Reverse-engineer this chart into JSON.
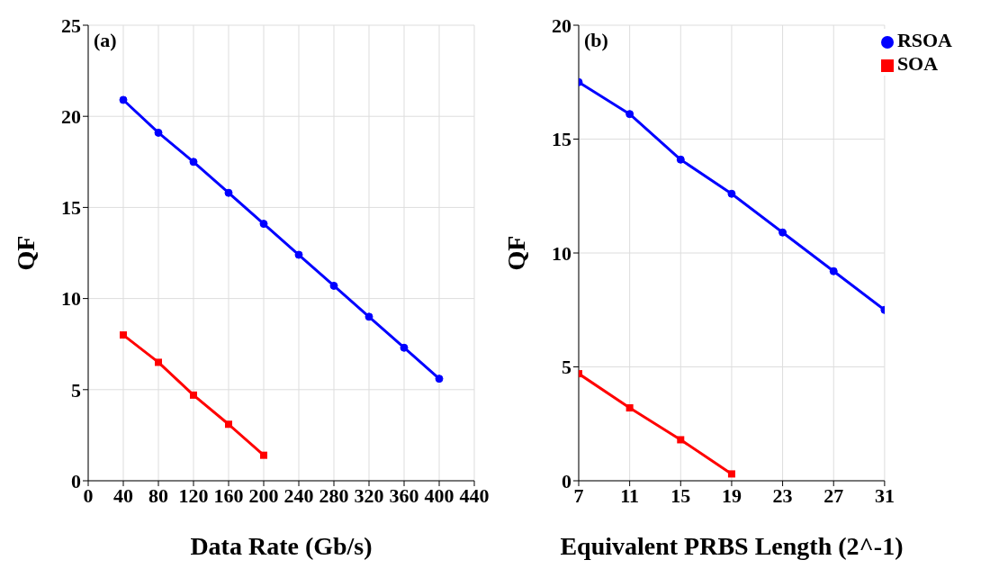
{
  "chart_data": [
    {
      "type": "line",
      "annotations": [
        "(a)"
      ],
      "xlabel": "Data Rate (Gb/s)",
      "ylabel": "QF",
      "xlim": [
        0,
        440
      ],
      "xticks": [
        0,
        40,
        80,
        120,
        160,
        200,
        240,
        280,
        320,
        360,
        400,
        440
      ],
      "ylim": [
        0,
        25
      ],
      "yticks": [
        0,
        5,
        10,
        15,
        20,
        25
      ],
      "grid": true,
      "legend": false,
      "series": [
        {
          "color": "#0000ff",
          "marker": "circle",
          "x": [
            40,
            80,
            120,
            160,
            200,
            240,
            280,
            320,
            360,
            400
          ],
          "values": [
            20.9,
            19.1,
            17.5,
            15.8,
            14.1,
            12.4,
            10.7,
            9.0,
            7.3,
            5.6
          ]
        },
        {
          "color": "#ff0000",
          "marker": "square",
          "x": [
            40,
            80,
            120,
            160,
            200
          ],
          "values": [
            8.0,
            6.5,
            4.7,
            3.1,
            1.4
          ]
        }
      ]
    },
    {
      "type": "line",
      "annotations": [
        "(b)"
      ],
      "xlabel": "Equivalent PRBS Length (2^-1)",
      "ylabel": "QF",
      "xlim": [
        7,
        31
      ],
      "xticks": [
        7,
        11,
        15,
        19,
        23,
        27,
        31
      ],
      "ylim": [
        0,
        20
      ],
      "yticks": [
        0,
        5,
        10,
        15,
        20
      ],
      "grid": true,
      "legend": "top right",
      "series": [
        {
          "name": "RSOA",
          "color": "#0000ff",
          "marker": "circle",
          "x": [
            7,
            11,
            15,
            19,
            23,
            27,
            31
          ],
          "values": [
            17.5,
            16.1,
            14.1,
            12.6,
            10.9,
            9.2,
            7.5
          ]
        },
        {
          "name": "SOA",
          "color": "#ff0000",
          "marker": "square",
          "x": [
            7,
            11,
            15,
            19
          ],
          "values": [
            4.7,
            3.2,
            1.8,
            0.3
          ]
        }
      ]
    }
  ]
}
